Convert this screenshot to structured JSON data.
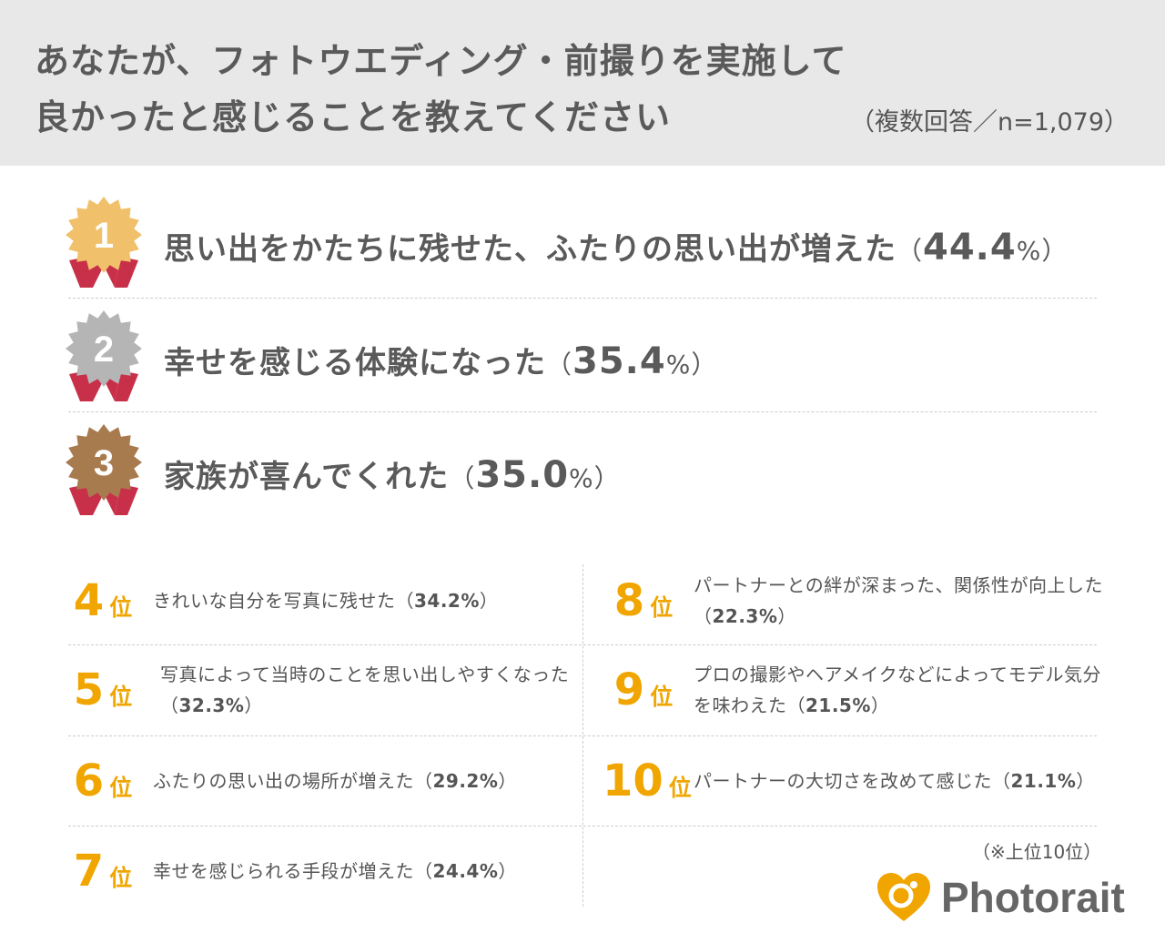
{
  "header": {
    "title_line1": "あなたが、フォトウエディング・前撮りを実施して",
    "title_line2": "良かったと感じることを教えてください",
    "subtitle": "（複数回答／n=1,079）"
  },
  "colors": {
    "gold": "#f0c06a",
    "silver": "#b5b5b5",
    "bronze": "#a87b4f",
    "ribbon": "#c8304a",
    "rank_orange": "#f0a500",
    "header_bg": "#e8e8e8"
  },
  "chart_data": {
    "type": "table",
    "columns": [
      "rank",
      "item",
      "percent"
    ],
    "rank_unit": "位",
    "rows": [
      {
        "rank": "1",
        "label": "思い出をかたちに残せた、ふたりの思い出が増えた",
        "value": "44.4"
      },
      {
        "rank": "2",
        "label": "幸せを感じる体験になった",
        "value": "35.4"
      },
      {
        "rank": "3",
        "label": "家族が喜んでくれた",
        "value": "35.0"
      },
      {
        "rank": "4",
        "label": "きれいな自分を写真に残せた",
        "value": "34.2"
      },
      {
        "rank": "5",
        "label": "写真によって当時のことを思い出しやすくなった",
        "value": "32.3"
      },
      {
        "rank": "6",
        "label": "ふたりの思い出の場所が増えた",
        "value": "29.2"
      },
      {
        "rank": "7",
        "label": "幸せを感じられる手段が増えた",
        "value": "24.4"
      },
      {
        "rank": "8",
        "label": "パートナーとの絆が深まった、関係性が向上した",
        "value": "22.3"
      },
      {
        "rank": "9",
        "label": "プロの撮影やヘアメイクなどによってモデル気分を味わえた",
        "value": "21.5"
      },
      {
        "rank": "10",
        "label": "パートナーの大切さを改めて感じた",
        "value": "21.1"
      }
    ]
  },
  "footer": {
    "note": "（※上位10位）",
    "logo": "Photorait"
  }
}
